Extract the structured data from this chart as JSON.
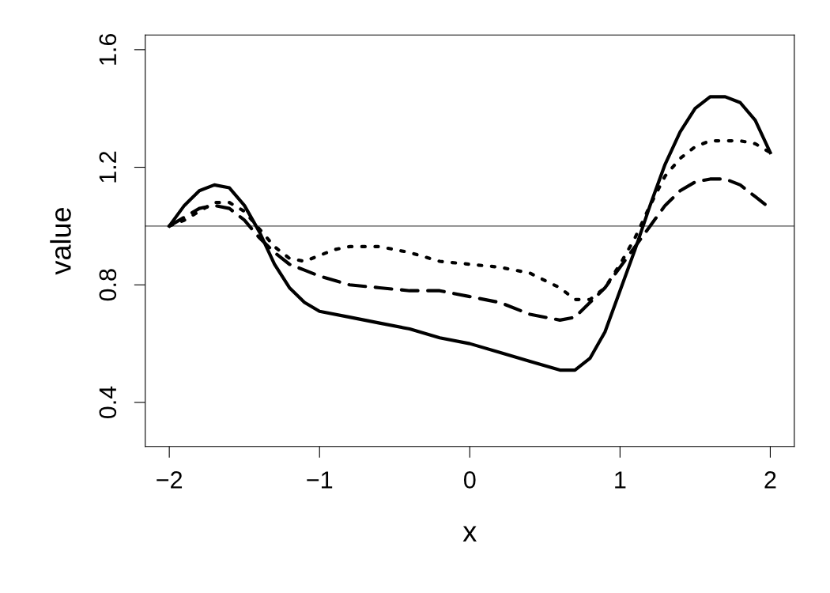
{
  "chart_data": {
    "type": "line",
    "xlabel": "x",
    "ylabel": "value",
    "x": [
      -2,
      -1.9,
      -1.8,
      -1.7,
      -1.6,
      -1.5,
      -1.4,
      -1.3,
      -1.2,
      -1.1,
      -1.0,
      -0.8,
      -0.6,
      -0.4,
      -0.2,
      0,
      0.2,
      0.4,
      0.6,
      0.7,
      0.8,
      0.9,
      1.0,
      1.1,
      1.2,
      1.3,
      1.4,
      1.5,
      1.6,
      1.7,
      1.8,
      1.9,
      2.0
    ],
    "series": [
      {
        "color": "#000000",
        "line_style": "solid",
        "values": [
          1.0,
          1.07,
          1.12,
          1.14,
          1.13,
          1.07,
          0.98,
          0.87,
          0.79,
          0.74,
          0.71,
          0.69,
          0.67,
          0.65,
          0.62,
          0.6,
          0.57,
          0.54,
          0.51,
          0.51,
          0.55,
          0.64,
          0.78,
          0.92,
          1.07,
          1.21,
          1.32,
          1.4,
          1.44,
          1.44,
          1.42,
          1.36,
          1.25
        ]
      },
      {
        "color": "#000000",
        "line_style": "dashed",
        "values": [
          1.0,
          1.03,
          1.06,
          1.07,
          1.06,
          1.02,
          0.96,
          0.91,
          0.87,
          0.85,
          0.83,
          0.8,
          0.79,
          0.78,
          0.78,
          0.76,
          0.74,
          0.7,
          0.68,
          0.69,
          0.74,
          0.79,
          0.86,
          0.93,
          1.0,
          1.07,
          1.12,
          1.15,
          1.16,
          1.16,
          1.14,
          1.1,
          1.06
        ]
      },
      {
        "color": "#000000",
        "line_style": "dotted",
        "x": [
          -2,
          -1.9,
          -1.8,
          -1.7,
          -1.6,
          -1.5,
          -1.4,
          -1.3,
          -1.2,
          -1.1,
          -1.0,
          -0.9,
          -0.8,
          -0.7,
          -0.6,
          -0.4,
          -0.2,
          0,
          0.2,
          0.4,
          0.6,
          0.7,
          0.8,
          0.9,
          1.0,
          1.1,
          1.2,
          1.3,
          1.4,
          1.5,
          1.6,
          1.7,
          1.8,
          1.9,
          2.0
        ],
        "values": [
          1.0,
          1.02,
          1.05,
          1.08,
          1.08,
          1.05,
          0.99,
          0.93,
          0.89,
          0.88,
          0.9,
          0.92,
          0.93,
          0.93,
          0.93,
          0.91,
          0.88,
          0.87,
          0.86,
          0.84,
          0.79,
          0.75,
          0.75,
          0.79,
          0.87,
          0.96,
          1.07,
          1.17,
          1.23,
          1.27,
          1.29,
          1.29,
          1.29,
          1.28,
          1.25
        ]
      }
    ],
    "ref_lines": [
      {
        "axis": "y",
        "value": 1.0,
        "color": "#808080"
      }
    ],
    "xlim": [
      -2.16,
      2.16
    ],
    "ylim": [
      0.25,
      1.65
    ],
    "xticks": [
      {
        "value": -2,
        "label": "−2"
      },
      {
        "value": -1,
        "label": "−1"
      },
      0,
      1,
      2
    ],
    "yticks": [
      0.4,
      0.8,
      1.2,
      1.6
    ],
    "grid": false,
    "legend": false
  }
}
